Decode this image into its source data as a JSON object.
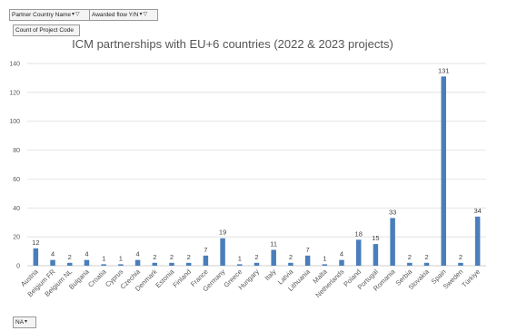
{
  "filters": {
    "partner": {
      "label": "Partner Country Name",
      "arrow": "▾",
      "filter_icon": "▽"
    },
    "flow": {
      "label": "Awarded flow Y/N",
      "arrow": "▾",
      "filter_icon": "▽"
    },
    "value_field": "Count of Project Code",
    "bottom_select": {
      "value": "NA",
      "arrow": "▾"
    }
  },
  "colors": {
    "bar": "#4a7ebb",
    "grid": "#d9d9d9",
    "axis": "#bfbfbf"
  },
  "chart_data": {
    "type": "bar",
    "title": "ICM partnerships with EU+6 countries (2022 & 2023 projects)",
    "xlabel": "",
    "ylabel": "",
    "ylim": [
      0,
      140
    ],
    "yticks": [
      0,
      20,
      40,
      60,
      80,
      100,
      120,
      140
    ],
    "grid": true,
    "legend": "none",
    "data_labels": true,
    "categories": [
      "Austria",
      "Belgium FR",
      "Belgium NL",
      "Bulgaria",
      "Croatia",
      "Cyprus",
      "Czechia",
      "Denmark",
      "Estonia",
      "Finland",
      "France",
      "Germany",
      "Greece",
      "Hungary",
      "Italy",
      "Latvia",
      "Lithuania",
      "Malta",
      "Netherlands",
      "Poland",
      "Portugal",
      "Romania",
      "Serbia",
      "Slovakia",
      "Spain",
      "Sweden",
      "Türkiye"
    ],
    "values": [
      12,
      4,
      2,
      4,
      1,
      1,
      4,
      2,
      2,
      2,
      7,
      19,
      1,
      2,
      11,
      2,
      7,
      1,
      4,
      18,
      15,
      33,
      2,
      2,
      131,
      2,
      34
    ]
  }
}
